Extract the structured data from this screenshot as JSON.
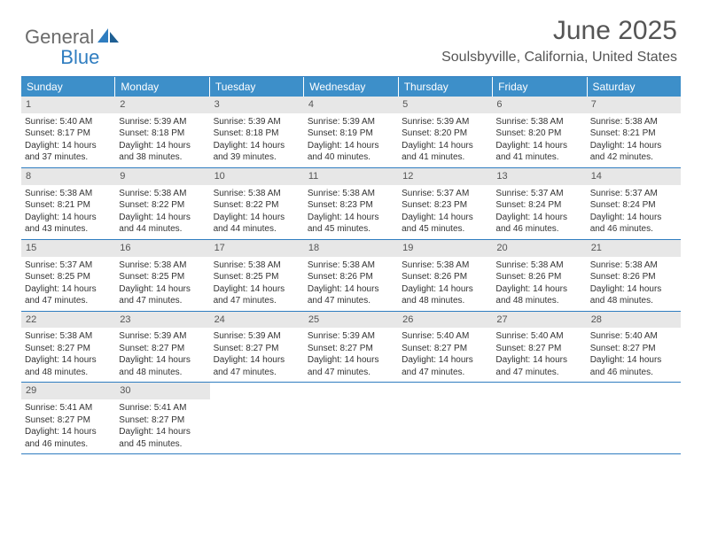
{
  "logo": {
    "text1": "General",
    "text2": "Blue"
  },
  "title": "June 2025",
  "location": "Soulsbyville, California, United States",
  "colors": {
    "header_bg": "#3d8fc9",
    "header_text": "#ffffff",
    "rule": "#2f7dc0",
    "daynum_bg": "#e7e7e7",
    "body_text": "#333333",
    "title_text": "#555555",
    "logo_gray": "#6b6b6b",
    "logo_blue": "#2f7dc0"
  },
  "fonts": {
    "title_size": 30,
    "location_size": 16,
    "header_size": 12,
    "cell_size": 10,
    "daynum_size": 11
  },
  "day_headers": [
    "Sunday",
    "Monday",
    "Tuesday",
    "Wednesday",
    "Thursday",
    "Friday",
    "Saturday"
  ],
  "weeks": [
    [
      {
        "n": "1",
        "sunrise": "5:40 AM",
        "sunset": "8:17 PM",
        "dl1": "14 hours",
        "dl2": "37 minutes."
      },
      {
        "n": "2",
        "sunrise": "5:39 AM",
        "sunset": "8:18 PM",
        "dl1": "14 hours",
        "dl2": "38 minutes."
      },
      {
        "n": "3",
        "sunrise": "5:39 AM",
        "sunset": "8:18 PM",
        "dl1": "14 hours",
        "dl2": "39 minutes."
      },
      {
        "n": "4",
        "sunrise": "5:39 AM",
        "sunset": "8:19 PM",
        "dl1": "14 hours",
        "dl2": "40 minutes."
      },
      {
        "n": "5",
        "sunrise": "5:39 AM",
        "sunset": "8:20 PM",
        "dl1": "14 hours",
        "dl2": "41 minutes."
      },
      {
        "n": "6",
        "sunrise": "5:38 AM",
        "sunset": "8:20 PM",
        "dl1": "14 hours",
        "dl2": "41 minutes."
      },
      {
        "n": "7",
        "sunrise": "5:38 AM",
        "sunset": "8:21 PM",
        "dl1": "14 hours",
        "dl2": "42 minutes."
      }
    ],
    [
      {
        "n": "8",
        "sunrise": "5:38 AM",
        "sunset": "8:21 PM",
        "dl1": "14 hours",
        "dl2": "43 minutes."
      },
      {
        "n": "9",
        "sunrise": "5:38 AM",
        "sunset": "8:22 PM",
        "dl1": "14 hours",
        "dl2": "44 minutes."
      },
      {
        "n": "10",
        "sunrise": "5:38 AM",
        "sunset": "8:22 PM",
        "dl1": "14 hours",
        "dl2": "44 minutes."
      },
      {
        "n": "11",
        "sunrise": "5:38 AM",
        "sunset": "8:23 PM",
        "dl1": "14 hours",
        "dl2": "45 minutes."
      },
      {
        "n": "12",
        "sunrise": "5:37 AM",
        "sunset": "8:23 PM",
        "dl1": "14 hours",
        "dl2": "45 minutes."
      },
      {
        "n": "13",
        "sunrise": "5:37 AM",
        "sunset": "8:24 PM",
        "dl1": "14 hours",
        "dl2": "46 minutes."
      },
      {
        "n": "14",
        "sunrise": "5:37 AM",
        "sunset": "8:24 PM",
        "dl1": "14 hours",
        "dl2": "46 minutes."
      }
    ],
    [
      {
        "n": "15",
        "sunrise": "5:37 AM",
        "sunset": "8:25 PM",
        "dl1": "14 hours",
        "dl2": "47 minutes."
      },
      {
        "n": "16",
        "sunrise": "5:38 AM",
        "sunset": "8:25 PM",
        "dl1": "14 hours",
        "dl2": "47 minutes."
      },
      {
        "n": "17",
        "sunrise": "5:38 AM",
        "sunset": "8:25 PM",
        "dl1": "14 hours",
        "dl2": "47 minutes."
      },
      {
        "n": "18",
        "sunrise": "5:38 AM",
        "sunset": "8:26 PM",
        "dl1": "14 hours",
        "dl2": "47 minutes."
      },
      {
        "n": "19",
        "sunrise": "5:38 AM",
        "sunset": "8:26 PM",
        "dl1": "14 hours",
        "dl2": "48 minutes."
      },
      {
        "n": "20",
        "sunrise": "5:38 AM",
        "sunset": "8:26 PM",
        "dl1": "14 hours",
        "dl2": "48 minutes."
      },
      {
        "n": "21",
        "sunrise": "5:38 AM",
        "sunset": "8:26 PM",
        "dl1": "14 hours",
        "dl2": "48 minutes."
      }
    ],
    [
      {
        "n": "22",
        "sunrise": "5:38 AM",
        "sunset": "8:27 PM",
        "dl1": "14 hours",
        "dl2": "48 minutes."
      },
      {
        "n": "23",
        "sunrise": "5:39 AM",
        "sunset": "8:27 PM",
        "dl1": "14 hours",
        "dl2": "48 minutes."
      },
      {
        "n": "24",
        "sunrise": "5:39 AM",
        "sunset": "8:27 PM",
        "dl1": "14 hours",
        "dl2": "47 minutes."
      },
      {
        "n": "25",
        "sunrise": "5:39 AM",
        "sunset": "8:27 PM",
        "dl1": "14 hours",
        "dl2": "47 minutes."
      },
      {
        "n": "26",
        "sunrise": "5:40 AM",
        "sunset": "8:27 PM",
        "dl1": "14 hours",
        "dl2": "47 minutes."
      },
      {
        "n": "27",
        "sunrise": "5:40 AM",
        "sunset": "8:27 PM",
        "dl1": "14 hours",
        "dl2": "47 minutes."
      },
      {
        "n": "28",
        "sunrise": "5:40 AM",
        "sunset": "8:27 PM",
        "dl1": "14 hours",
        "dl2": "46 minutes."
      }
    ],
    [
      {
        "n": "29",
        "sunrise": "5:41 AM",
        "sunset": "8:27 PM",
        "dl1": "14 hours",
        "dl2": "46 minutes."
      },
      {
        "n": "30",
        "sunrise": "5:41 AM",
        "sunset": "8:27 PM",
        "dl1": "14 hours",
        "dl2": "45 minutes."
      },
      null,
      null,
      null,
      null,
      null
    ]
  ]
}
